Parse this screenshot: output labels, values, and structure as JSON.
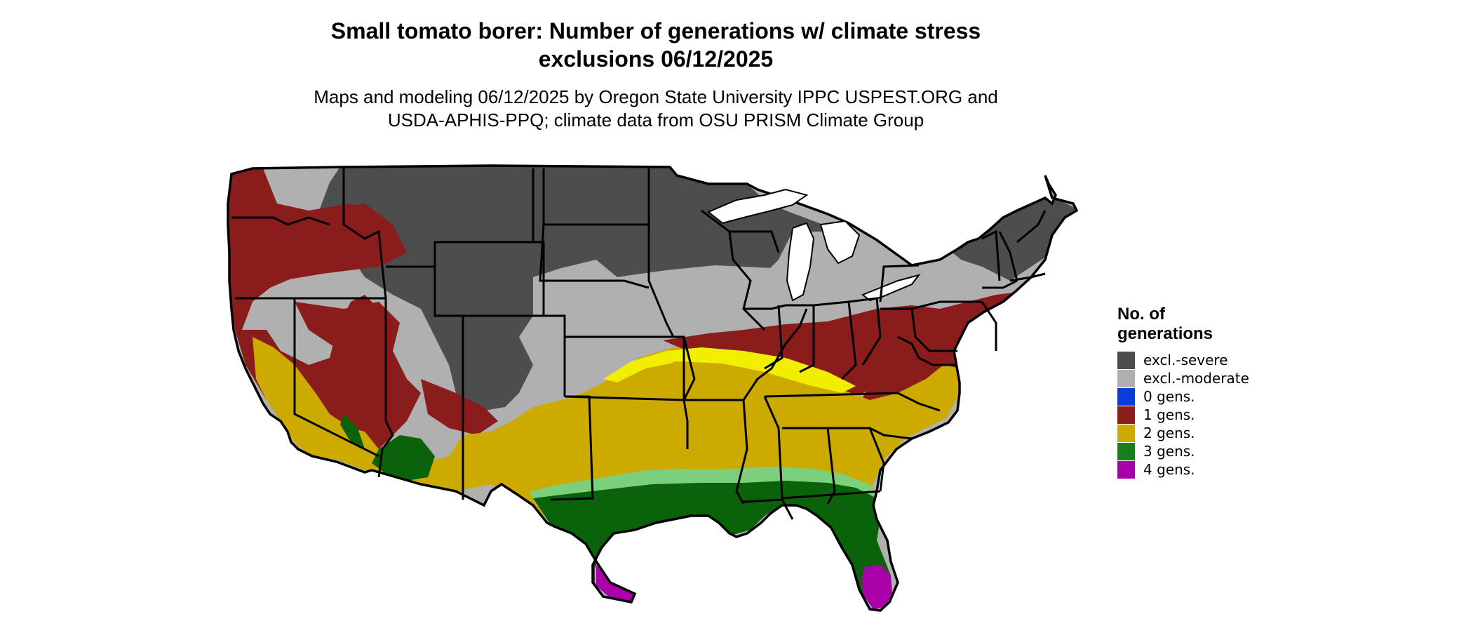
{
  "title_line1": "Small tomato borer: Number of generations w/ climate stress",
  "title_line2": "exclusions 06/12/2025",
  "subtitle_line1": "Maps and modeling 06/12/2025 by Oregon State University IPPC USPEST.ORG and",
  "subtitle_line2": "USDA-APHIS-PPQ; climate data from OSU PRISM Climate Group",
  "legend": {
    "title_line1": "No. of",
    "title_line2": "generations",
    "items": [
      {
        "label": "excl.-severe",
        "color": "#4d4d4d"
      },
      {
        "label": "excl.-moderate",
        "color": "#b0b0b0"
      },
      {
        "label": "0 gens.",
        "color": "#0a3cdc"
      },
      {
        "label": "1 gens.",
        "color": "#8b1c1c"
      },
      {
        "label": "2 gens.",
        "color": "#ccaa00"
      },
      {
        "label": "3 gens.",
        "color": "#1a7f1a"
      },
      {
        "label": "4 gens.",
        "color": "#aa00aa"
      }
    ]
  },
  "colors": {
    "excl_severe": "#4d4d4d",
    "excl_moderate": "#b0b0b0",
    "gen1": "#8b1c1c",
    "gen2": "#ccaa00",
    "gen3": "#0a620a",
    "gen3_light": "#7cd07c",
    "gen4": "#aa00aa",
    "transition_yellow": "#f2ee00"
  }
}
